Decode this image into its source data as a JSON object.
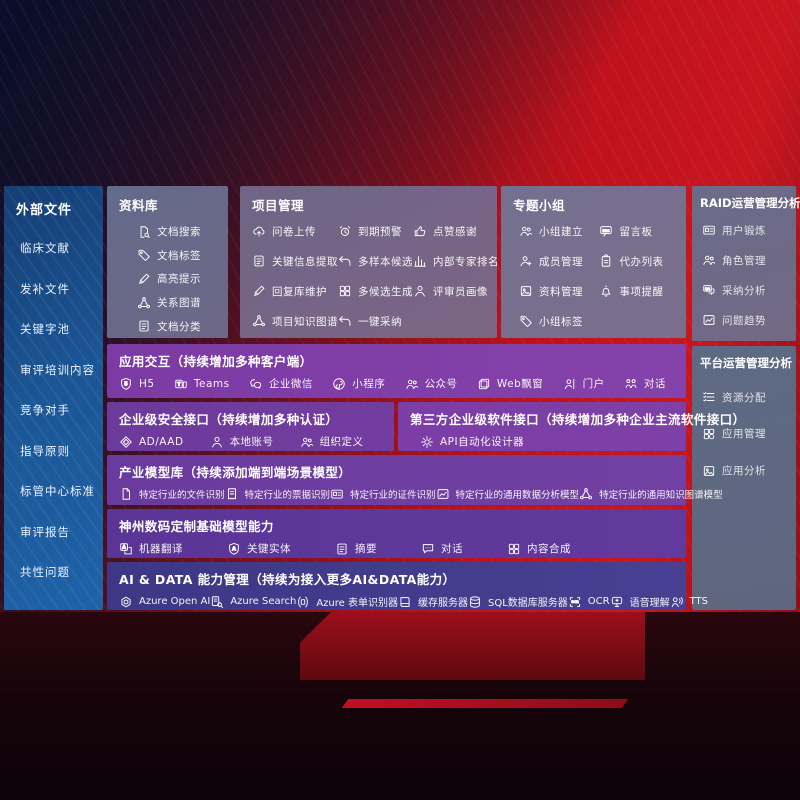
{
  "colors": {
    "background_red": "#c0121c",
    "background_navy": "#0a1030",
    "sidebar_blue": "#1b5695",
    "panel_gray": "#6e6a88",
    "band_purple": "#7c3aa4",
    "band_blue_purple": "#423a8c",
    "text": "#ffffff"
  },
  "sidebar": {
    "title": "外部文件",
    "items": [
      "临床文献",
      "发补文件",
      "关键字池",
      "审评培训内容",
      "竞争对手",
      "指导原则",
      "标管中心标准",
      "审评报告",
      "共性问题"
    ]
  },
  "panels": {
    "ziliaoku": {
      "title": "资料库",
      "items": [
        {
          "icon": "doc-search",
          "label": "文档搜索"
        },
        {
          "icon": "tag",
          "label": "文档标签"
        },
        {
          "icon": "pen",
          "label": "高亮提示"
        },
        {
          "icon": "graph",
          "label": "关系图谱"
        },
        {
          "icon": "doc-lines",
          "label": "文档分类"
        }
      ]
    },
    "xiangmu": {
      "title": "项目管理",
      "items": [
        {
          "icon": "cloud-up",
          "label": "问卷上传"
        },
        {
          "icon": "alarm",
          "label": "到期预警"
        },
        {
          "icon": "thumb",
          "label": "点赞感谢"
        },
        {
          "icon": "doc-lines",
          "label": "关键信息提取"
        },
        {
          "icon": "back",
          "label": "多样本候选"
        },
        {
          "icon": "bars",
          "label": "内部专家排名"
        },
        {
          "icon": "pen",
          "label": "回复库维护"
        },
        {
          "icon": "grid",
          "label": "多候选生成"
        },
        {
          "icon": "person",
          "label": "评审员画像"
        },
        {
          "icon": "graph",
          "label": "项目知识图谱"
        },
        {
          "icon": "back",
          "label": "一键采纳"
        }
      ]
    },
    "zhuanti": {
      "title": "专题小组",
      "items": [
        {
          "icon": "people",
          "label": "小组建立"
        },
        {
          "icon": "bbs",
          "label": "留言板"
        },
        {
          "icon": "person-add",
          "label": "成员管理"
        },
        {
          "icon": "clipboard",
          "label": "代办列表"
        },
        {
          "icon": "photo",
          "label": "资料管理"
        },
        {
          "icon": "bell",
          "label": "事项提醒"
        },
        {
          "icon": "tag",
          "label": "小组标签"
        }
      ]
    },
    "raid": {
      "title": "RAID运营管理分析",
      "items": [
        {
          "icon": "card",
          "label": "用户锻炼"
        },
        {
          "icon": "people",
          "label": "角色管理"
        },
        {
          "icon": "qa",
          "label": "采纳分析"
        },
        {
          "icon": "trend",
          "label": "问题趋势"
        }
      ]
    },
    "platform": {
      "title": "平台运营管理分析",
      "items": [
        {
          "icon": "list-check",
          "label": "资源分配"
        },
        {
          "icon": "apps",
          "label": "应用管理"
        },
        {
          "icon": "photo",
          "label": "应用分析"
        }
      ]
    }
  },
  "bands": {
    "interaction": {
      "title": "应用交互（持续增加多种客户端）",
      "items": [
        {
          "icon": "h5",
          "label": "H5"
        },
        {
          "icon": "teams",
          "label": "Teams"
        },
        {
          "icon": "wechat",
          "label": "企业微信"
        },
        {
          "icon": "mini",
          "label": "小程序"
        },
        {
          "icon": "people",
          "label": "公众号"
        },
        {
          "icon": "window",
          "label": "Web飘窗"
        },
        {
          "icon": "portal",
          "label": "门户"
        },
        {
          "icon": "duo",
          "label": "对话"
        }
      ]
    },
    "security": {
      "title": "企业级安全接口（持续增加多种认证）",
      "items": [
        {
          "icon": "diamond",
          "label": "AD/AAD"
        },
        {
          "icon": "person",
          "label": "本地账号"
        },
        {
          "icon": "people",
          "label": "组织定义"
        }
      ]
    },
    "thirdparty": {
      "title": "第三方企业级软件接口（持续增加多种企业主流软件接口）",
      "items": [
        {
          "icon": "gear",
          "label": "API自动化设计器"
        }
      ]
    },
    "industry": {
      "title": "产业模型库（持续添加端到端场景模型）",
      "items": [
        {
          "icon": "doc",
          "label": "特定行业的文件识别"
        },
        {
          "icon": "receipt",
          "label": "特定行业的票据识别"
        },
        {
          "icon": "card",
          "label": "特定行业的证件识别"
        },
        {
          "icon": "trend",
          "label": "特定行业的通用数据分析模型"
        },
        {
          "icon": "graph",
          "label": "特定行业的通用知识图谱模型"
        }
      ]
    },
    "dc": {
      "title": "神州数码定制基础模型能力",
      "items": [
        {
          "icon": "translate",
          "label": "机器翻译"
        },
        {
          "icon": "shieldA",
          "label": "关键实体"
        },
        {
          "icon": "doc-lines",
          "label": "摘要"
        },
        {
          "icon": "chat",
          "label": "对话"
        },
        {
          "icon": "grid",
          "label": "内容合成"
        }
      ]
    },
    "aidata": {
      "title": "AI & DATA 能力管理（持续为接入更多AI&DATA能力）",
      "items": [
        {
          "icon": "openai",
          "label": "Azure Open AI"
        },
        {
          "icon": "search",
          "label": "Azure Search"
        },
        {
          "icon": "form",
          "label": "Azure 表单识别器"
        },
        {
          "icon": "book",
          "label": "缓存服务器"
        },
        {
          "icon": "db",
          "label": "SQL数据库服务器"
        },
        {
          "icon": "ocr",
          "label": "OCR"
        },
        {
          "icon": "speech",
          "label": "语音理解"
        },
        {
          "icon": "tts",
          "label": "TTS"
        }
      ]
    }
  }
}
